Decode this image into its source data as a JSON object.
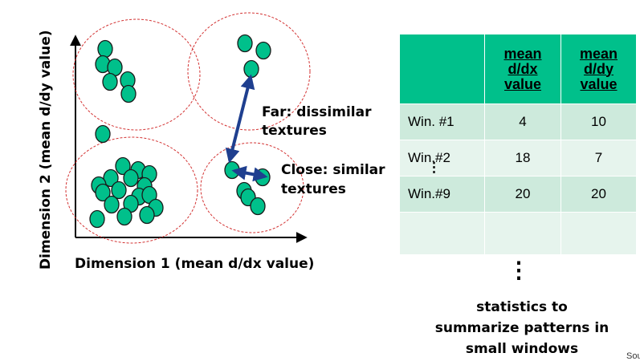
{
  "axes": {
    "x_label": "Dimension 1 (mean d/dx value)",
    "y_label": "Dimension 2 (mean d/dy value)"
  },
  "annotations": {
    "far_line1": "Far: dissimilar",
    "far_line2": "textures",
    "close_line1": "Close: similar",
    "close_line2": "textures"
  },
  "table": {
    "headers": [
      "",
      "mean d/dx value",
      "mean d/dy value"
    ],
    "header_lines": {
      "col1": [
        "mean",
        "d/dx",
        "value"
      ],
      "col2": [
        "mean",
        "d/dy",
        "value"
      ]
    },
    "rows": [
      {
        "label": "Win. #1",
        "dx": "4",
        "dy": "10"
      },
      {
        "label": "Win.#2",
        "dx": "18",
        "dy": "7"
      },
      {
        "label": "Win.#9",
        "dx": "20",
        "dy": "20"
      }
    ],
    "row_ellipsis": "⋮",
    "continuation": "⋮"
  },
  "caption": {
    "line1": "statistics to",
    "line2": "summarize patterns in",
    "line3": "small windows"
  },
  "source_text": "Sou",
  "colors": {
    "dot": "#00c08b",
    "header": "#00c08b",
    "row_dark": "#cdeadc",
    "row_light": "#e6f4ed",
    "arrow": "#1f3f8f",
    "cluster_outline": "#d33333"
  }
}
